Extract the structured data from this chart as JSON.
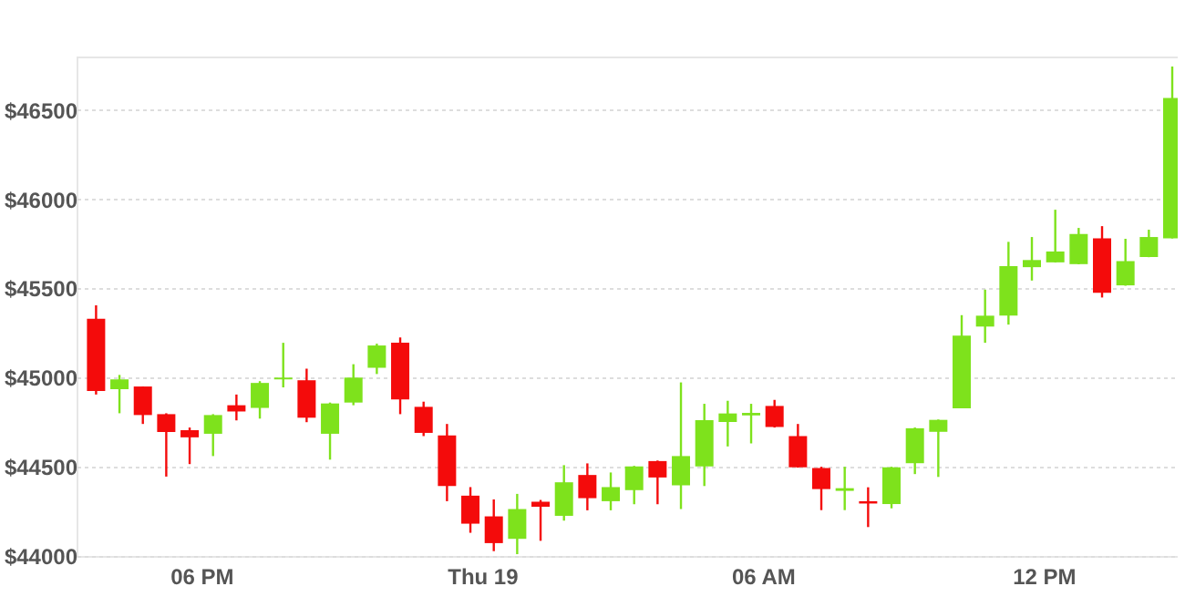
{
  "chart_data": {
    "type": "candlestick",
    "x": [
      "--08-18T15:45",
      "--08-18T16:15",
      "--08-18T16:45",
      "--08-18T17:15",
      "--08-18T17:45",
      "--08-18T18:15",
      "--08-18T18:45",
      "--08-18T19:15",
      "--08-18T19:45",
      "--08-18T20:15",
      "--08-18T20:45",
      "--08-18T21:15",
      "--08-18T21:45",
      "--08-18T22:15",
      "--08-18T22:45",
      "--08-18T23:15",
      "--08-18T23:45",
      "--08-19T00:15",
      "--08-19T00:45",
      "--08-19T01:15",
      "--08-19T01:45",
      "--08-19T02:15",
      "--08-19T02:45",
      "--08-19T03:15",
      "--08-19T03:45",
      "--08-19T04:15",
      "--08-19T04:45",
      "--08-19T05:15",
      "--08-19T05:45",
      "--08-19T06:15",
      "--08-19T06:45",
      "--08-19T07:15",
      "--08-19T07:45",
      "--08-19T08:15",
      "--08-19T08:45",
      "--08-19T09:15",
      "--08-19T09:45",
      "--08-19T10:15",
      "--08-19T10:45",
      "--08-19T11:15",
      "--08-19T11:45",
      "--08-19T12:15",
      "--08-19T12:45",
      "--08-19T13:15",
      "--08-19T13:45",
      "--08-19T14:15",
      "--08-19T14:45"
    ],
    "ohlc": [
      [
        45330,
        45405,
        44905,
        44925
      ],
      [
        44935,
        45015,
        44800,
        44990
      ],
      [
        44950,
        44950,
        44740,
        44790
      ],
      [
        44795,
        44800,
        44445,
        44695
      ],
      [
        44705,
        44720,
        44515,
        44665
      ],
      [
        44685,
        44795,
        44560,
        44790
      ],
      [
        44845,
        44905,
        44760,
        44810
      ],
      [
        44830,
        44980,
        44770,
        44970
      ],
      [
        44990,
        45195,
        44945,
        45000
      ],
      [
        44985,
        45050,
        44750,
        44775
      ],
      [
        44685,
        44860,
        44540,
        44855
      ],
      [
        44860,
        45075,
        44845,
        45000
      ],
      [
        45055,
        45190,
        45020,
        45180
      ],
      [
        45195,
        45225,
        44795,
        44877
      ],
      [
        44836,
        44865,
        44672,
        44690
      ],
      [
        44676,
        44740,
        44307,
        44392
      ],
      [
        44338,
        44386,
        44130,
        44181
      ],
      [
        44222,
        44317,
        44027,
        44072
      ],
      [
        44096,
        44348,
        44010,
        44263
      ],
      [
        44304,
        44314,
        44085,
        44276
      ],
      [
        44225,
        44509,
        44198,
        44413
      ],
      [
        44454,
        44519,
        44256,
        44324
      ],
      [
        44307,
        44468,
        44256,
        44386
      ],
      [
        44369,
        44505,
        44290,
        44502
      ],
      [
        44532,
        44535,
        44290,
        44440
      ],
      [
        44396,
        44973,
        44263,
        44560
      ],
      [
        44502,
        44853,
        44392,
        44761
      ],
      [
        44751,
        44870,
        44614,
        44799
      ],
      [
        44788,
        44853,
        44631,
        44802
      ],
      [
        44841,
        44875,
        44720,
        44723
      ],
      [
        44672,
        44740,
        44495,
        44497
      ],
      [
        44493,
        44500,
        44257,
        44375
      ],
      [
        44365,
        44500,
        44257,
        44380
      ],
      [
        44307,
        44385,
        44162,
        44294
      ],
      [
        44291,
        44500,
        44267,
        44497
      ],
      [
        44520,
        44720,
        44459,
        44716
      ],
      [
        44696,
        44765,
        44443,
        44763
      ],
      [
        44828,
        45350,
        44828,
        45235
      ],
      [
        45286,
        45493,
        45195,
        45347
      ],
      [
        45347,
        45761,
        45297,
        45625
      ],
      [
        45619,
        45788,
        45544,
        45659
      ],
      [
        45646,
        45941,
        45645,
        45707
      ],
      [
        45636,
        45839,
        45635,
        45805
      ],
      [
        45781,
        45849,
        45449,
        45476
      ],
      [
        45517,
        45778,
        45515,
        45653
      ],
      [
        45676,
        45829,
        45675,
        45788
      ],
      [
        45781,
        46744,
        45780,
        46568
      ]
    ],
    "colors": [
      "#f40b0b",
      "#7ee21c",
      "#f40b0b",
      "#f40b0b",
      "#f40b0b",
      "#7ee21c",
      "#f40b0b",
      "#7ee21c",
      "#7ee21c",
      "#f40b0b",
      "#7ee21c",
      "#7ee21c",
      "#7ee21c",
      "#f40b0b",
      "#f40b0b",
      "#f40b0b",
      "#f40b0b",
      "#f40b0b",
      "#7ee21c",
      "#f40b0b",
      "#7ee21c",
      "#f40b0b",
      "#7ee21c",
      "#7ee21c",
      "#f40b0b",
      "#7ee21c",
      "#7ee21c",
      "#7ee21c",
      "#7ee21c",
      "#f40b0b",
      "#f40b0b",
      "#f40b0b",
      "#7ee21c",
      "#f40b0b",
      "#7ee21c",
      "#7ee21c",
      "#7ee21c",
      "#7ee21c",
      "#7ee21c",
      "#7ee21c",
      "#7ee21c",
      "#7ee21c",
      "#7ee21c",
      "#f40b0b",
      "#7ee21c",
      "#7ee21c",
      "#7ee21c"
    ],
    "xlim": [
      "--08-18T15:20",
      "--08-19T14:52"
    ],
    "xticks": [
      {
        "value": "--08-18T18:00",
        "label": "06 PM"
      },
      {
        "value": "--08-19T00:00",
        "label": "Thu 19"
      },
      {
        "value": "--08-19T06:00",
        "label": "06 AM"
      },
      {
        "value": "--08-19T12:00",
        "label": "12 PM"
      }
    ],
    "ylim": [
      44000,
      46800
    ],
    "yticks": [
      {
        "value": 44000,
        "label": "$44000"
      },
      {
        "value": 44500,
        "label": "$44500"
      },
      {
        "value": 45000,
        "label": "$45000"
      },
      {
        "value": 45500,
        "label": "$45500"
      },
      {
        "value": 46000,
        "label": "$46000"
      },
      {
        "value": 46500,
        "label": "$46500"
      }
    ],
    "grid": "y"
  }
}
